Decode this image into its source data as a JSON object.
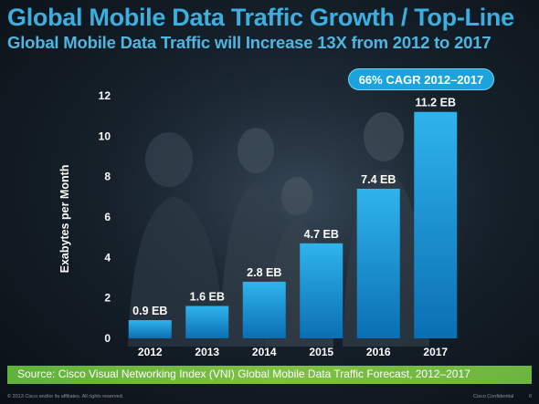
{
  "slide": {
    "title": "Global Mobile Data Traffic Growth / Top-Line",
    "subtitle": "Global Mobile Data Traffic will Increase 13X from 2012 to 2017",
    "cagr_badge": "66% CAGR 2012–2017",
    "source": "Source: Cisco Visual Networking Index (VNI) Global Mobile Data Traffic Forecast, 2012–2017",
    "footer_copyright": "© 2013 Cisco and/or its affiliates. All rights reserved.",
    "footer_confidential": "Cisco Confidential",
    "page_number": "6"
  },
  "colors": {
    "title": "#3bb0e0",
    "bar_top": "#2fb4ec",
    "bar_bottom": "#0a6fb4",
    "badge": "#1aa3dd",
    "source_bar": "#6cb63f"
  },
  "chart_data": {
    "type": "bar",
    "categories": [
      "2012",
      "2013",
      "2014",
      "2015",
      "2016",
      "2017"
    ],
    "values": [
      0.9,
      1.6,
      2.8,
      4.7,
      7.4,
      11.2
    ],
    "data_labels": [
      "0.9 EB",
      "1.6 EB",
      "2.8 EB",
      "4.7 EB",
      "7.4 EB",
      "11.2 EB"
    ],
    "ylabel": "Exabytes per Month",
    "ylim": [
      0,
      12
    ],
    "yticks": [
      0,
      2,
      4,
      6,
      8,
      10,
      12
    ],
    "grid": false,
    "legend": "none"
  }
}
